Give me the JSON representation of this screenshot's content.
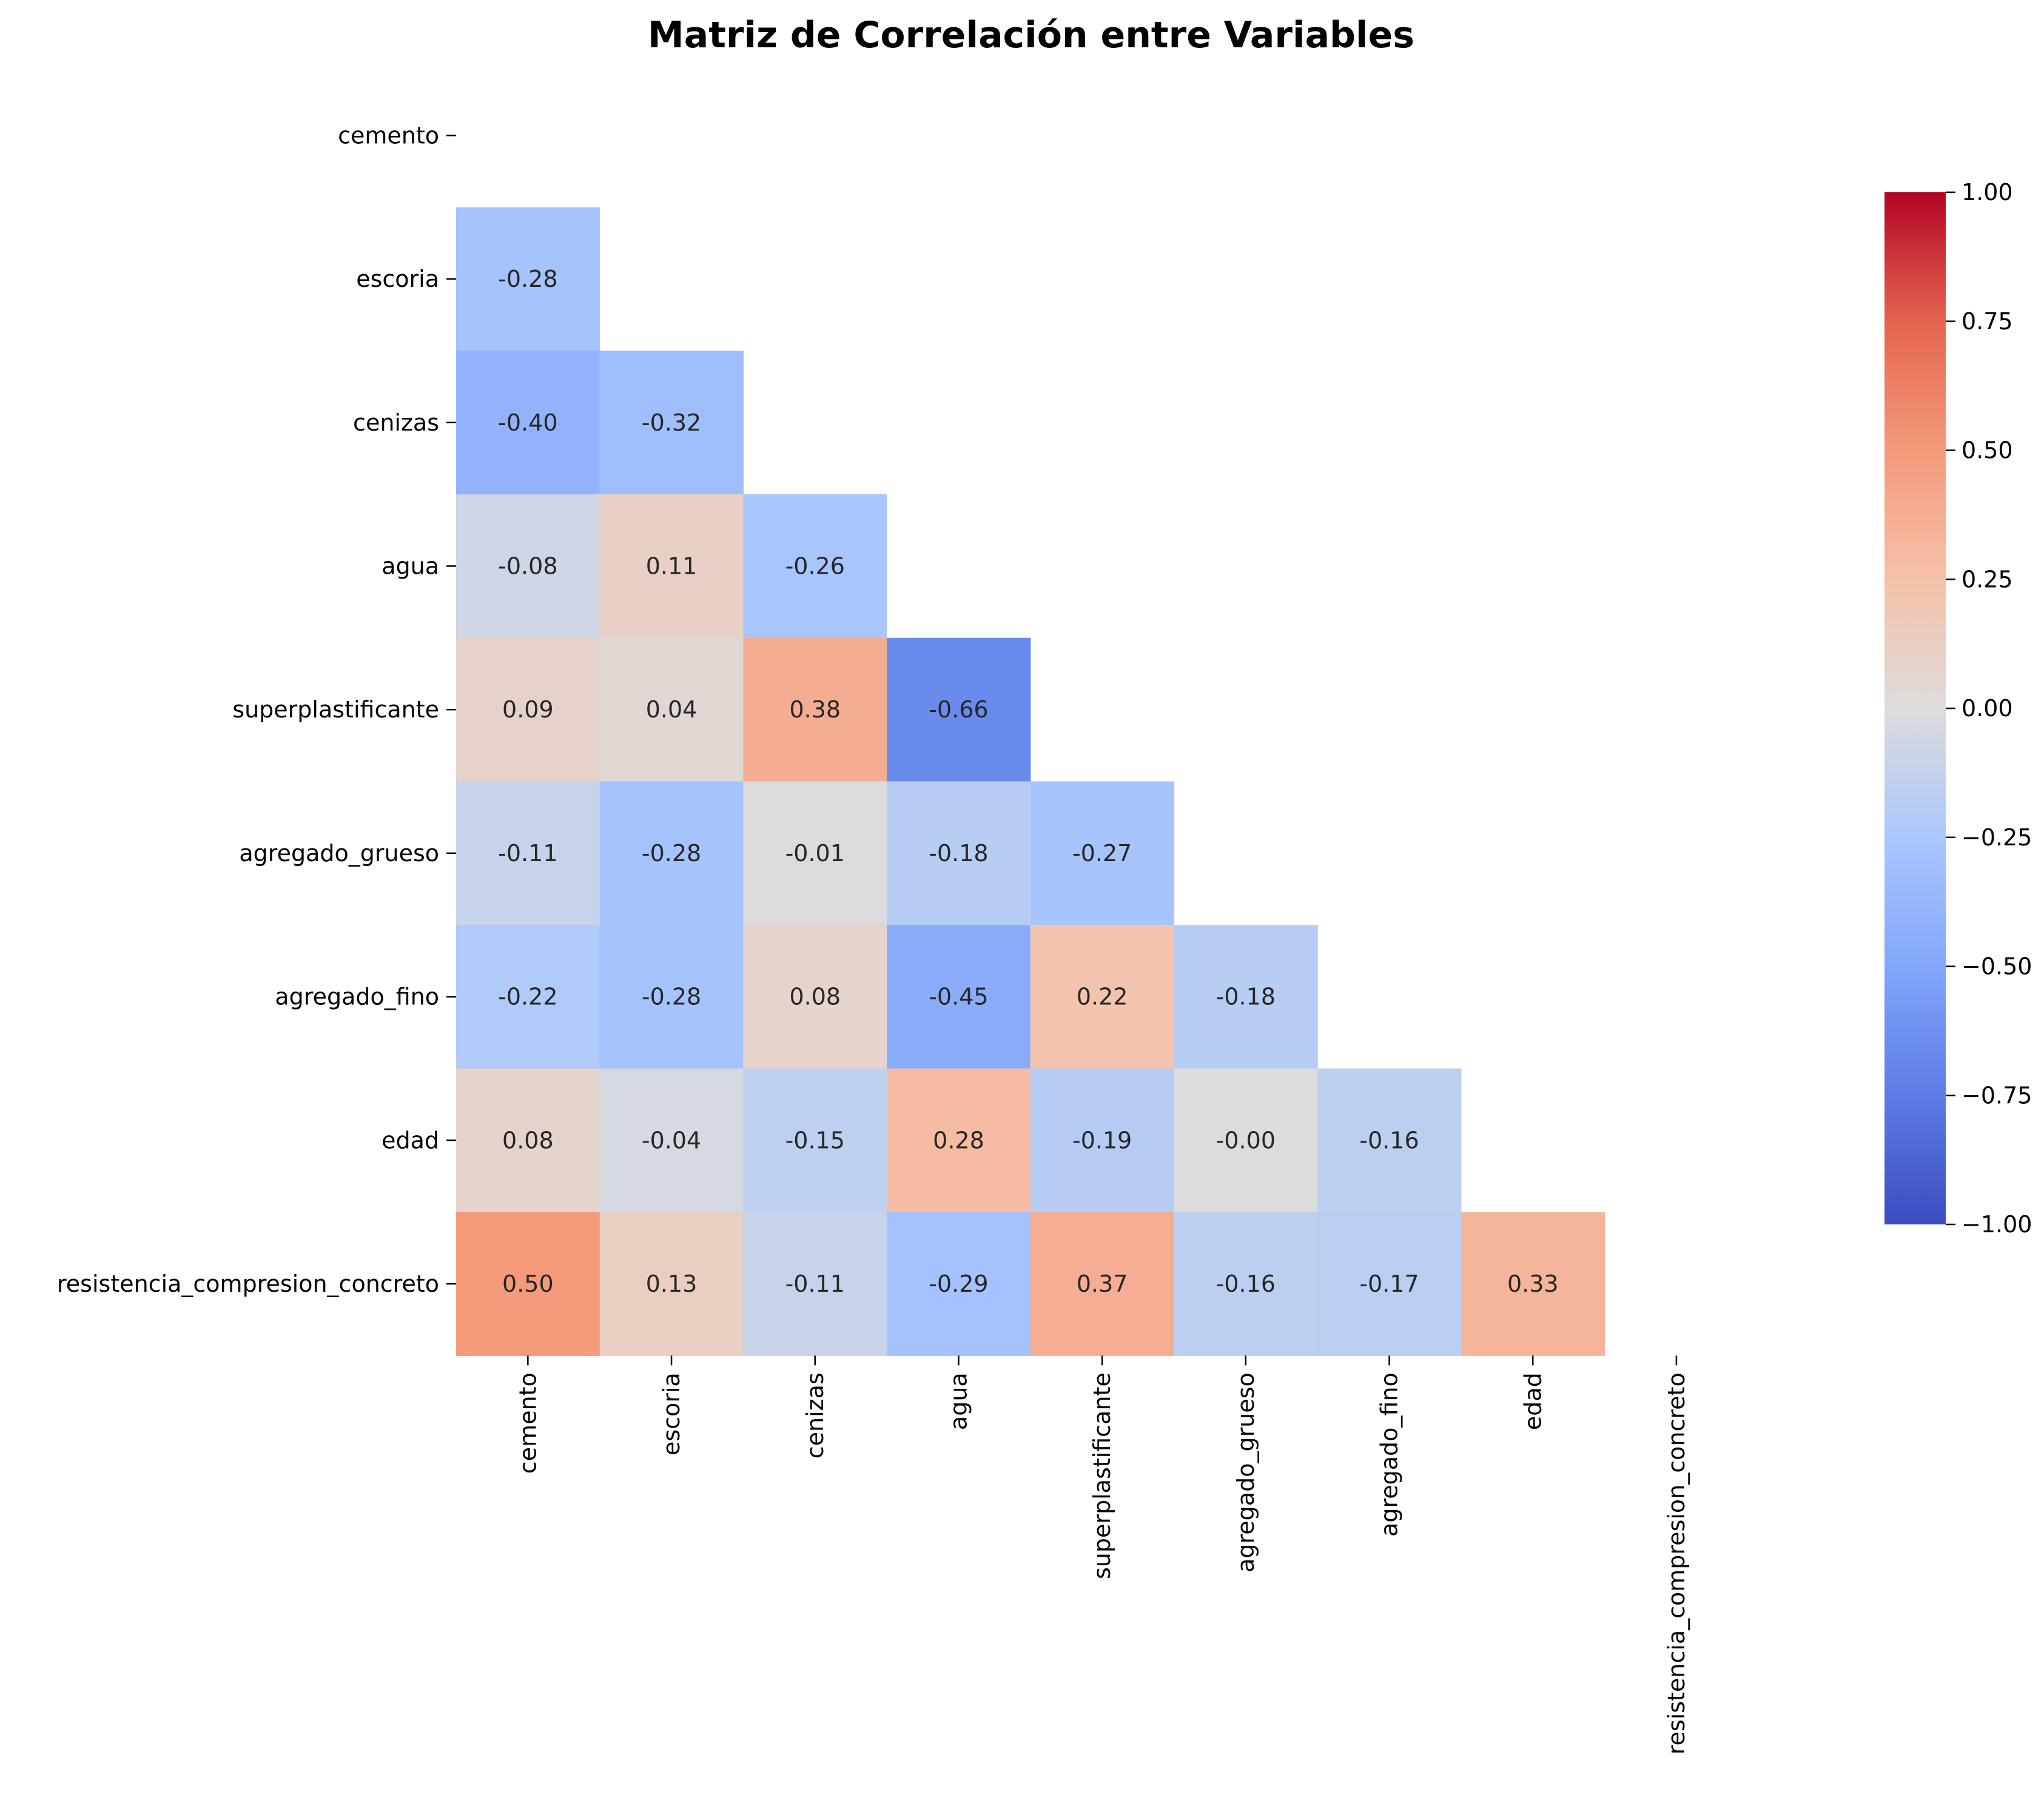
{
  "chart_data": {
    "type": "heatmap",
    "title": "Matriz de Correlación entre Variables",
    "variables": [
      "cemento",
      "escoria",
      "cenizas",
      "agua",
      "superplastificante",
      "agregado_grueso",
      "agregado_fino",
      "edad",
      "resistencia_compresion_concreto"
    ],
    "mask": "upper-triangle-including-diagonal",
    "values": [
      [
        null,
        null,
        null,
        null,
        null,
        null,
        null,
        null,
        null
      ],
      [
        -0.28,
        null,
        null,
        null,
        null,
        null,
        null,
        null,
        null
      ],
      [
        -0.4,
        -0.32,
        null,
        null,
        null,
        null,
        null,
        null,
        null
      ],
      [
        -0.08,
        0.11,
        -0.26,
        null,
        null,
        null,
        null,
        null,
        null
      ],
      [
        0.09,
        0.04,
        0.38,
        -0.66,
        null,
        null,
        null,
        null,
        null
      ],
      [
        -0.11,
        -0.28,
        -0.01,
        -0.18,
        -0.27,
        null,
        null,
        null,
        null
      ],
      [
        -0.22,
        -0.28,
        0.08,
        -0.45,
        0.22,
        -0.18,
        null,
        null,
        null
      ],
      [
        0.08,
        -0.04,
        -0.15,
        0.28,
        -0.19,
        -0.0,
        -0.16,
        null,
        null
      ],
      [
        0.5,
        0.13,
        -0.11,
        -0.29,
        0.37,
        -0.16,
        -0.17,
        0.33,
        null
      ]
    ],
    "labels": [
      [
        null,
        null,
        null,
        null,
        null,
        null,
        null,
        null,
        null
      ],
      [
        "-0.28",
        null,
        null,
        null,
        null,
        null,
        null,
        null,
        null
      ],
      [
        "-0.40",
        "-0.32",
        null,
        null,
        null,
        null,
        null,
        null,
        null
      ],
      [
        "-0.08",
        "0.11",
        "-0.26",
        null,
        null,
        null,
        null,
        null,
        null
      ],
      [
        "0.09",
        "0.04",
        "0.38",
        "-0.66",
        null,
        null,
        null,
        null,
        null
      ],
      [
        "-0.11",
        "-0.28",
        "-0.01",
        "-0.18",
        "-0.27",
        null,
        null,
        null,
        null
      ],
      [
        "-0.22",
        "-0.28",
        "0.08",
        "-0.45",
        "0.22",
        "-0.18",
        null,
        null,
        null
      ],
      [
        "0.08",
        "-0.04",
        "-0.15",
        "0.28",
        "-0.19",
        "-0.00",
        "-0.16",
        null,
        null
      ],
      [
        "0.50",
        "0.13",
        "-0.11",
        "-0.29",
        "0.37",
        "-0.16",
        "-0.17",
        "0.33",
        null
      ]
    ],
    "colormap": "coolwarm",
    "vmin": -1.0,
    "vmax": 1.0,
    "colorbar_ticks": [
      "1.00",
      "0.75",
      "0.50",
      "0.25",
      "0.00",
      "−0.25",
      "−0.50",
      "−0.75",
      "−1.00"
    ],
    "colorbar_tick_values": [
      1.0,
      0.75,
      0.5,
      0.25,
      0.0,
      -0.25,
      -0.5,
      -0.75,
      -1.0
    ],
    "legend_placement": "right",
    "grid": false
  }
}
